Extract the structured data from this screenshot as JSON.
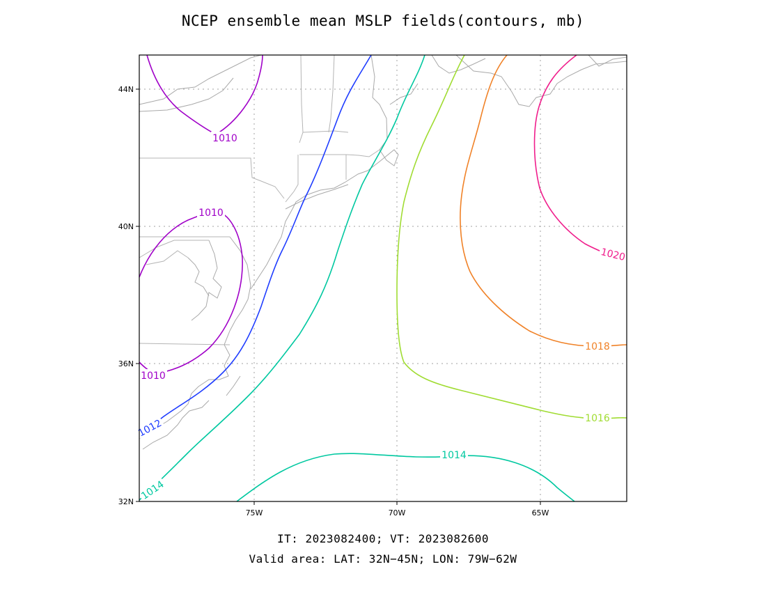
{
  "title": "NCEP ensemble mean MSLP fields(contours, mb)",
  "footer": {
    "line1": "IT: 2023082400; VT: 2023082600",
    "line2": "Valid area: LAT: 32N−45N; LON: 79W−62W"
  },
  "axes": {
    "lat_ticks": [
      "32N",
      "36N",
      "40N",
      "44N"
    ],
    "lon_ticks": [
      "75W",
      "70W",
      "65W"
    ]
  },
  "colors": {
    "1010": "#a000c8",
    "1012": "#1e3cff",
    "1014": "#00c8a0",
    "1016": "#a0dc32",
    "1018": "#f08228",
    "1020": "#f01e8c",
    "coast": "#a9a9a9",
    "grid": "#a0a0a0"
  },
  "contours": [
    {
      "name": "1010",
      "label": "1010"
    },
    {
      "name": "1012",
      "label": "1012"
    },
    {
      "name": "1014",
      "label": "1014"
    },
    {
      "name": "1016",
      "label": "1016"
    },
    {
      "name": "1018",
      "label": "1018"
    },
    {
      "name": "1020",
      "label": "1020"
    }
  ]
}
